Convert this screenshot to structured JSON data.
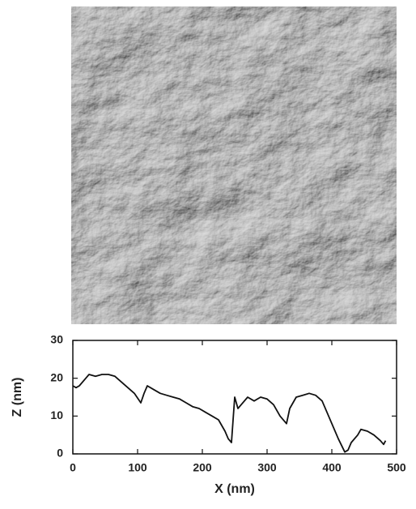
{
  "chart_data": {
    "type": "line",
    "xlabel": "X (nm)",
    "ylabel": "Z (nm)",
    "x": [
      0,
      5,
      10,
      20,
      25,
      35,
      45,
      55,
      65,
      75,
      85,
      95,
      105,
      110,
      115,
      125,
      135,
      145,
      155,
      165,
      175,
      185,
      195,
      205,
      215,
      225,
      235,
      240,
      245,
      250,
      255,
      260,
      270,
      280,
      290,
      300,
      310,
      320,
      330,
      335,
      345,
      355,
      365,
      375,
      385,
      395,
      405,
      410,
      420,
      425,
      430,
      440,
      445,
      455,
      465,
      475,
      480,
      483
    ],
    "values": [
      18,
      17.5,
      18,
      20,
      21,
      20.5,
      21,
      21,
      20.5,
      19,
      17.5,
      16,
      13.5,
      16,
      18,
      17,
      16,
      15.5,
      15,
      14.5,
      13.5,
      12.5,
      12,
      11,
      10,
      9,
      6,
      4,
      3,
      15,
      12,
      13,
      15,
      14,
      15,
      14.5,
      13,
      10,
      8,
      12,
      15,
      15.5,
      16,
      15.5,
      14,
      10,
      6,
      4,
      0.5,
      1,
      3,
      5,
      6.5,
      6,
      5,
      3.5,
      2.5,
      3.5
    ],
    "color": "#111111",
    "xlim": [
      0,
      500
    ],
    "ylim": [
      0,
      30
    ],
    "xticks": [
      0,
      100,
      200,
      300,
      400,
      500
    ],
    "yticks": [
      0,
      10,
      20,
      30
    ]
  }
}
